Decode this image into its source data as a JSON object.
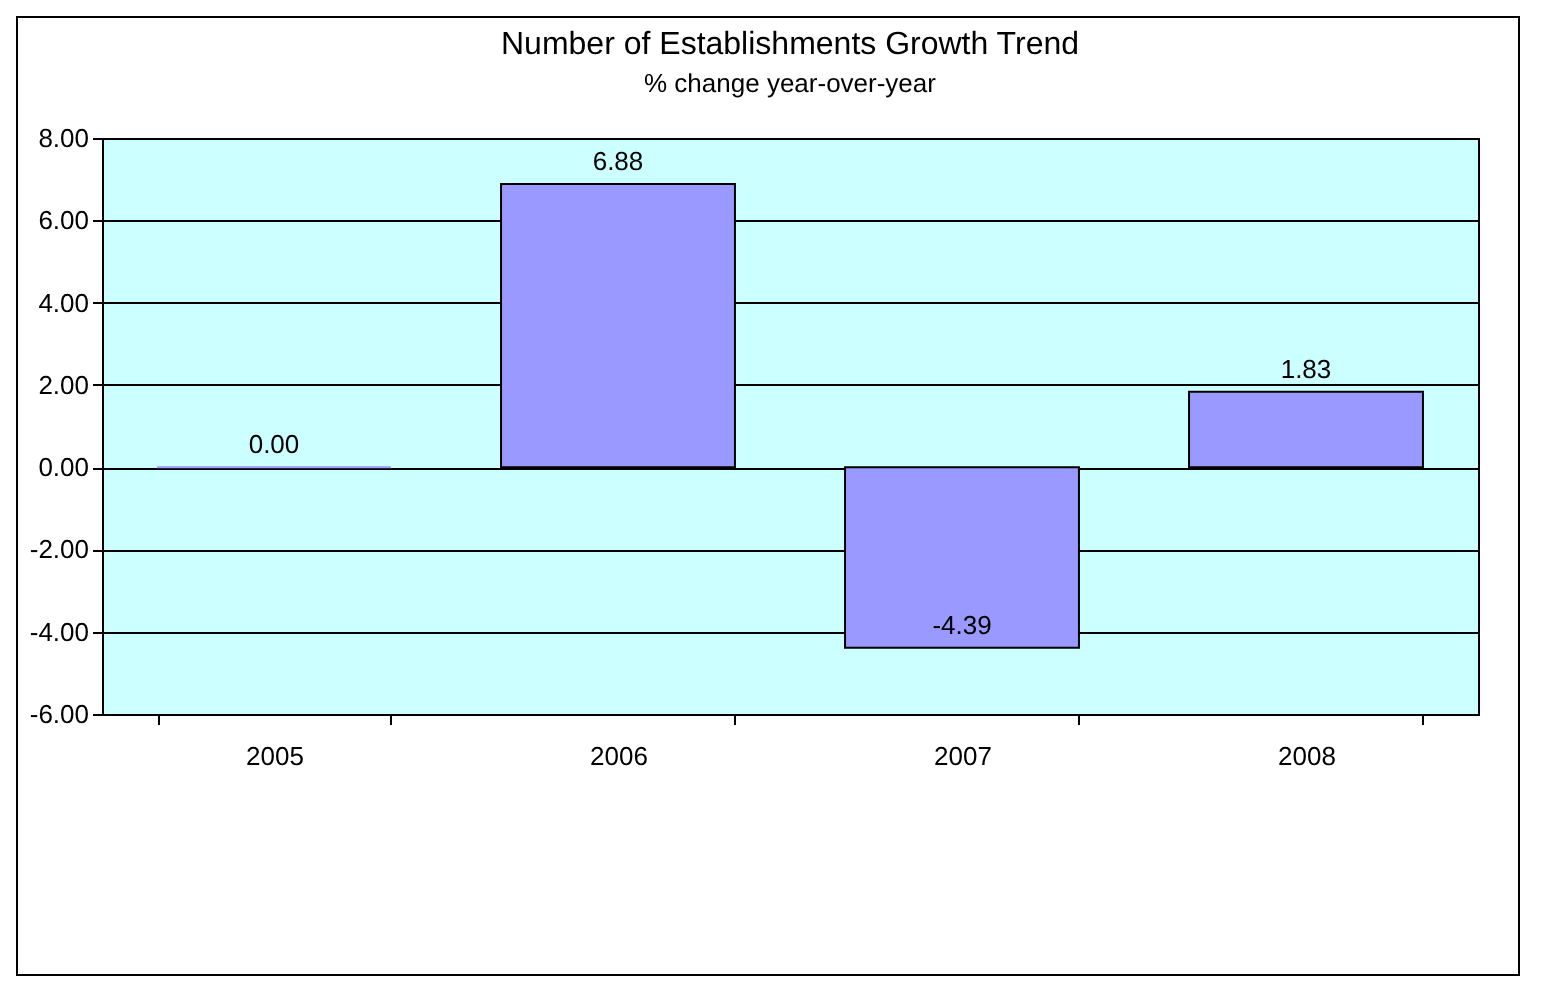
{
  "chart_data": {
    "type": "bar",
    "title": "Number of Establishments Growth Trend",
    "subtitle": "% change year-over-year",
    "categories": [
      "2005",
      "2006",
      "2007",
      "2008"
    ],
    "values": [
      0,
      6.88,
      -4.39,
      1.83
    ],
    "value_labels": [
      "0.00",
      "6.88",
      "-4.39",
      "1.83"
    ],
    "color": "#9999ff",
    "ylim": [
      -6,
      8
    ],
    "yticks": [
      {
        "value": -6,
        "label": "-6.00"
      },
      {
        "value": -4,
        "label": "-4.00"
      },
      {
        "value": -2,
        "label": "-2.00"
      },
      {
        "value": 0,
        "label": "0.00"
      },
      {
        "value": 2,
        "label": "2.00"
      },
      {
        "value": 4,
        "label": "4.00"
      },
      {
        "value": 6,
        "label": "6.00"
      },
      {
        "value": 8,
        "label": "8.00"
      }
    ],
    "grid": "y"
  }
}
